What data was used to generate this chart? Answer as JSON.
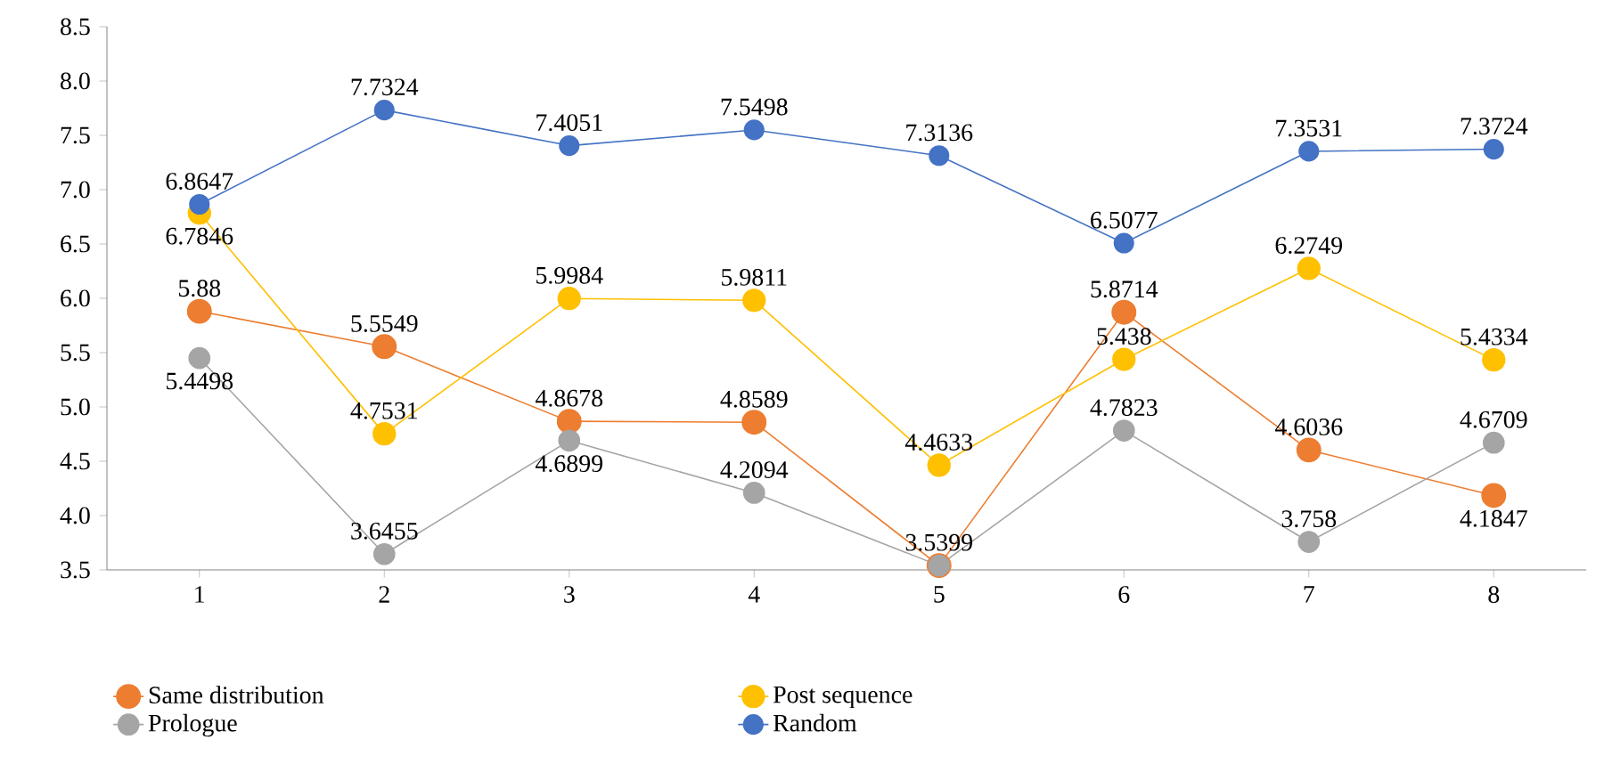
{
  "chart_data": {
    "type": "line",
    "categories": [
      "1",
      "2",
      "3",
      "4",
      "5",
      "6",
      "7",
      "8"
    ],
    "series": [
      {
        "name": "Same distribution",
        "color": "#ed7d31",
        "values": [
          5.88,
          5.5549,
          4.8678,
          4.8589,
          3.54,
          5.8714,
          4.6036,
          4.1847
        ],
        "value_labels": [
          "5.88",
          "5.5549",
          "4.8678",
          "4.8589",
          null,
          "5.8714",
          "4.6036",
          "4.1847"
        ]
      },
      {
        "name": "Post sequence",
        "color": "#ffc000",
        "values": [
          6.7846,
          4.7531,
          5.9984,
          5.9811,
          4.4633,
          5.438,
          6.2749,
          5.4334
        ],
        "value_labels": [
          "6.7846",
          "4.7531",
          "5.9984",
          "5.9811",
          "4.4633",
          "5.438",
          "6.2749",
          "5.4334"
        ]
      },
      {
        "name": "Prologue",
        "color": "#a5a5a5",
        "values": [
          5.4498,
          3.6455,
          4.6899,
          4.2094,
          3.5399,
          4.7823,
          3.758,
          4.6709
        ],
        "value_labels": [
          "5.4498",
          "3.6455",
          "4.6899",
          "4.2094",
          "3.5399",
          "4.7823",
          "3.758",
          "4.6709"
        ]
      },
      {
        "name": "Random",
        "color": "#4472c4",
        "values": [
          6.8647,
          7.7324,
          7.4051,
          7.5498,
          7.3136,
          6.5077,
          7.3531,
          7.3724
        ],
        "value_labels": [
          "6.8647",
          "7.7324",
          "7.4051",
          "7.5498",
          "7.3136",
          "6.5077",
          "7.3531",
          "7.3724"
        ]
      }
    ],
    "ylim": [
      3.5,
      8.5
    ],
    "yticks": [
      3.5,
      {
        "value": 4,
        "label": "4.0"
      },
      4.5,
      {
        "value": 5,
        "label": "5.0"
      },
      5.5,
      {
        "value": 6,
        "label": "6.0"
      },
      6.5,
      {
        "value": 7,
        "label": "7.0"
      },
      7.5,
      {
        "value": 8,
        "label": "8.0"
      },
      8.5
    ],
    "grid": false,
    "legend": "bottom",
    "marker": "circle",
    "line_style": "solid"
  }
}
